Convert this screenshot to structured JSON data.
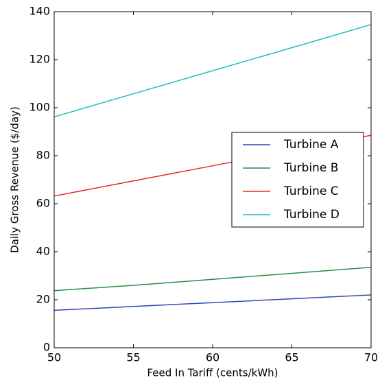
{
  "chart_data": {
    "type": "line",
    "xlabel": "Feed In Tariff (cents/kWh)",
    "ylabel": "Daily Gross Revenue ($/day)",
    "x": [
      50,
      55,
      60,
      65,
      70
    ],
    "series": [
      {
        "name": "Turbine A",
        "color": "#2f45b8",
        "values": [
          15.6,
          17.2,
          18.8,
          20.4,
          22.0
        ]
      },
      {
        "name": "Turbine B",
        "color": "#1f9146",
        "values": [
          23.8,
          26.0,
          28.5,
          31.0,
          33.5
        ]
      },
      {
        "name": "Turbine C",
        "color": "#e8262a",
        "values": [
          63.2,
          69.5,
          75.8,
          82.2,
          88.5
        ]
      },
      {
        "name": "Turbine D",
        "color": "#1ebfbf",
        "values": [
          96.2,
          105.8,
          115.4,
          125.0,
          134.6
        ]
      }
    ],
    "xlim": [
      50,
      70
    ],
    "xticks": [
      50,
      55,
      60,
      65,
      70
    ],
    "ylim": [
      0,
      140
    ],
    "yticks": [
      0,
      20,
      40,
      60,
      80,
      100,
      120,
      140
    ],
    "legend": "center right"
  }
}
